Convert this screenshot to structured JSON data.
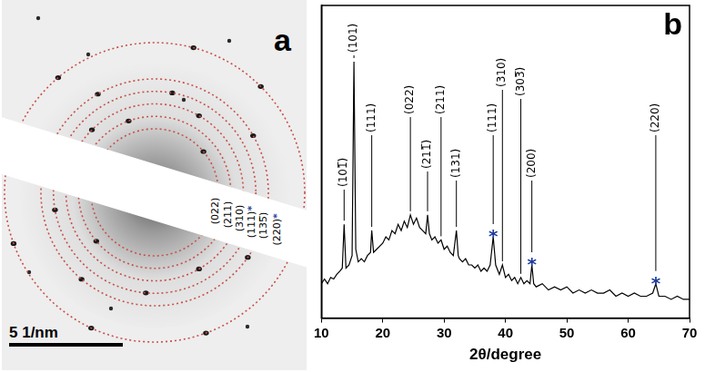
{
  "panel_a": {
    "letter": "a",
    "rings": [
      {
        "label": "(022)",
        "radius": 2.8
      },
      {
        "label": "(211)",
        "radius": 3.35
      },
      {
        "label": "(310)",
        "radius": 3.9
      },
      {
        "label": "(111)*",
        "radius": 4.45
      },
      {
        "label": "(135̅)",
        "radius": 5.0
      },
      {
        "label": "(220)*",
        "radius": 6.6
      }
    ],
    "ring_color": "#c8504a",
    "mark_color": "#1f3b9b",
    "scale_bar": {
      "value": 5,
      "label": "5 1/nm"
    }
  },
  "chart_data": {
    "type": "line",
    "panel_label": "b",
    "xlabel": "2θ/degree",
    "x": [
      10,
      10.5,
      11,
      11.5,
      12,
      12.5,
      13,
      13.4,
      13.7,
      14,
      14.5,
      15,
      15.3,
      15.6,
      16,
      16.5,
      17,
      17.5,
      18,
      18.2,
      18.5,
      19,
      19.5,
      20,
      20.5,
      21,
      21.5,
      22,
      22.5,
      23,
      23.5,
      24,
      24.5,
      25,
      25.5,
      26,
      26.5,
      27,
      27.3,
      27.6,
      28,
      28.5,
      29,
      29.5,
      30,
      30.5,
      31,
      31.5,
      32,
      32.3,
      32.5,
      33,
      33.5,
      34,
      34.5,
      35,
      35.5,
      36,
      36.5,
      37,
      37.5,
      38,
      38.4,
      39,
      39.5,
      40,
      40.5,
      41,
      41.5,
      42,
      42.5,
      43,
      43.5,
      44,
      44.3,
      44.6,
      45,
      46,
      47,
      48,
      49,
      50,
      51,
      52,
      53,
      54,
      55,
      56,
      57,
      58,
      59,
      60,
      61,
      62,
      63,
      64,
      64.5,
      65,
      66,
      67,
      68,
      69,
      70
    ],
    "values": [
      11,
      12.5,
      11,
      13,
      12.5,
      14,
      15,
      16,
      30,
      16,
      17,
      20,
      82,
      22,
      18,
      19,
      18,
      20,
      21,
      28,
      21,
      22,
      23,
      24,
      26,
      25,
      28,
      27,
      30,
      28,
      31,
      29,
      33,
      30,
      32,
      29,
      28,
      27,
      33,
      27,
      25,
      26,
      24,
      25,
      22,
      23,
      21,
      20,
      28,
      20,
      19,
      18,
      19,
      17,
      17,
      16,
      17,
      15,
      16,
      15,
      17,
      26,
      17,
      14,
      17,
      13,
      14,
      12,
      13,
      11,
      13,
      11,
      12,
      11,
      17,
      11,
      10,
      11,
      9,
      10,
      9,
      10,
      8,
      9,
      8,
      9,
      8,
      8,
      9,
      7,
      8,
      7,
      8,
      7,
      7,
      8,
      11,
      7,
      7,
      6,
      7,
      6,
      6
    ],
    "color": "#000000",
    "xlim": [
      10,
      70
    ],
    "xticks": [
      10,
      20,
      30,
      40,
      50,
      60,
      70
    ],
    "ylim": [
      0,
      100
    ],
    "tick_labels": "x",
    "grid": false,
    "mark_color": "#1f3b9b",
    "annotations": [
      {
        "x": 13.7,
        "y": 30,
        "text": "(101̅)"
      },
      {
        "x": 15.3,
        "y": 82,
        "text": "(101)"
      },
      {
        "x": 18.2,
        "y": 28,
        "text": "(111)"
      },
      {
        "x": 24.5,
        "y": 33,
        "text": "(022)"
      },
      {
        "x": 27.3,
        "y": 33,
        "text": "(211̅)"
      },
      {
        "x": 29.5,
        "y": 25,
        "text": "(211)"
      },
      {
        "x": 32,
        "y": 28,
        "text": "(131)"
      },
      {
        "x": 38,
        "y": 26,
        "text": "(111)",
        "mark": "*"
      },
      {
        "x": 39.5,
        "y": 17,
        "text": "(310)"
      },
      {
        "x": 42.5,
        "y": 13,
        "text": "(303̅)"
      },
      {
        "x": 44.3,
        "y": 17,
        "text": "(200)",
        "mark": "*"
      },
      {
        "x": 64.5,
        "y": 11,
        "text": "(220)",
        "mark": "*"
      }
    ]
  }
}
